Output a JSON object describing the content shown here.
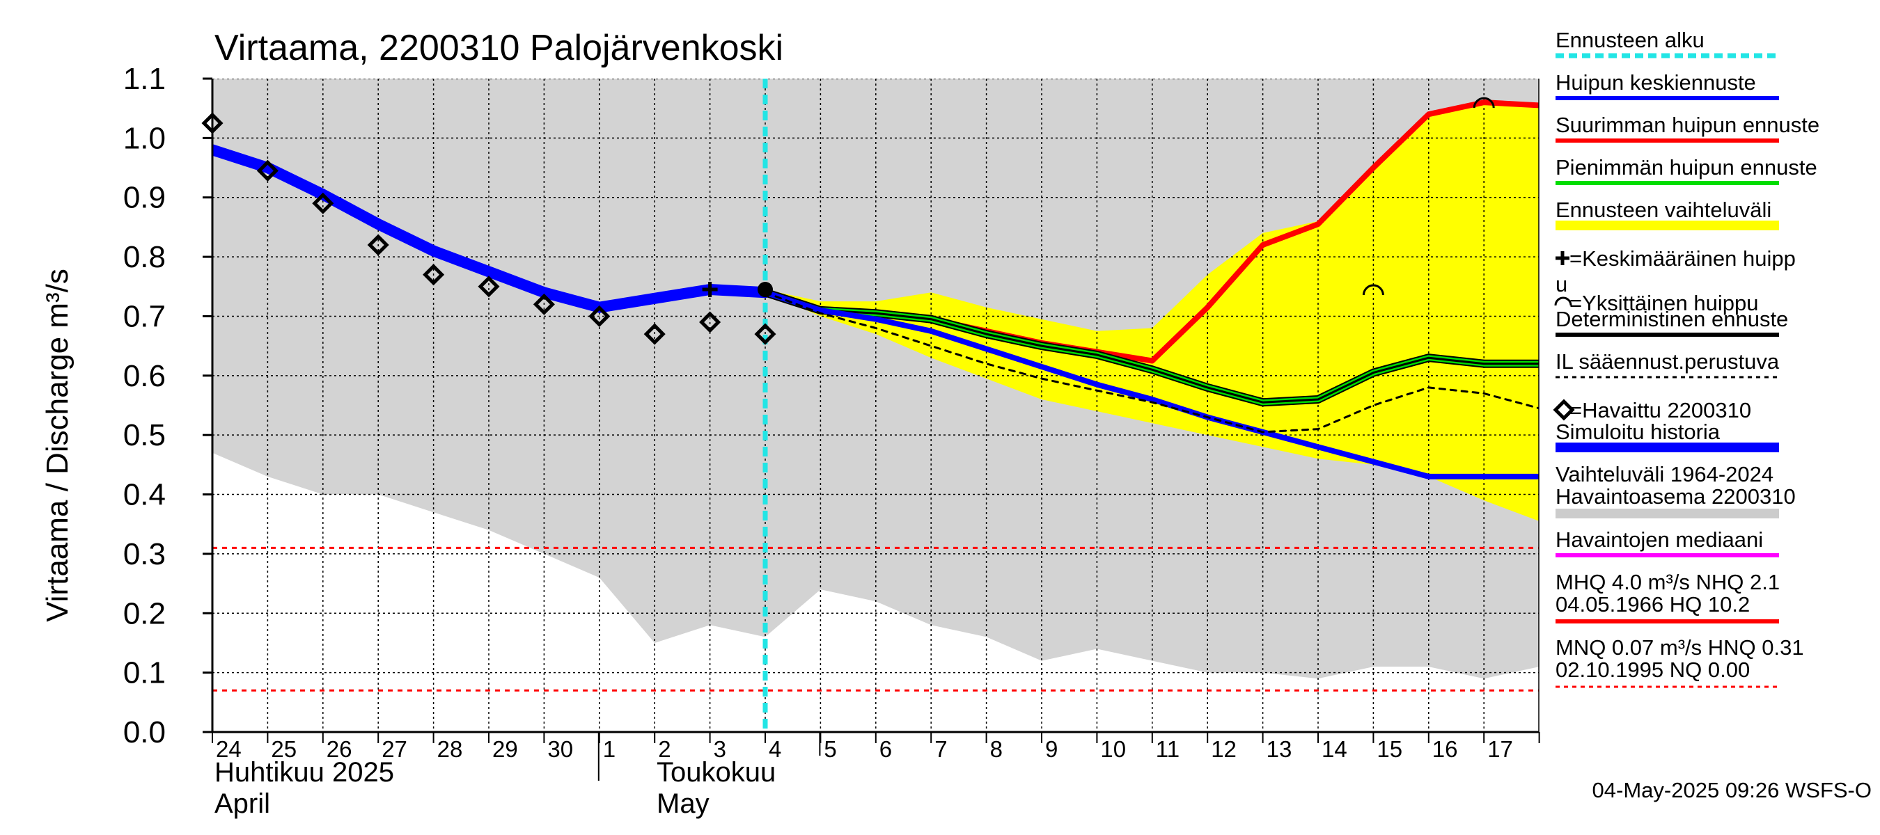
{
  "chart_data": {
    "type": "line",
    "title": "Virtaama, 2200310 Palojärvenkoski",
    "ylabel": "Virtaama / Discharge    m³/s",
    "ylim": [
      0.0,
      1.1
    ],
    "yticks": [
      "0.0",
      "0.1",
      "0.2",
      "0.3",
      "0.4",
      "0.5",
      "0.6",
      "0.7",
      "0.8",
      "0.9",
      "1.0",
      "1.1"
    ],
    "x_days": [
      "24",
      "25",
      "26",
      "27",
      "28",
      "29",
      "30",
      "1",
      "2",
      "3",
      "4",
      "5",
      "6",
      "7",
      "8",
      "9",
      "10",
      "11",
      "12",
      "13",
      "14",
      "15",
      "16",
      "17"
    ],
    "month_labels": {
      "april_fi": "Huhtikuu  2025",
      "april_en": "April",
      "may_fi": "Toukokuu",
      "may_en": "May"
    },
    "forecast_start": 10.0,
    "reference_lines": [
      {
        "name": "HNQ",
        "value": 0.31,
        "color": "#ff0000"
      },
      {
        "name": "MNQ",
        "value": 0.07,
        "color": "#ff0000"
      }
    ],
    "range_band": {
      "x": [
        0,
        1,
        2,
        3,
        4,
        5,
        6,
        7,
        8,
        9,
        10,
        11,
        12,
        13,
        14,
        15,
        16,
        17,
        18,
        19,
        20,
        21,
        22,
        23,
        24
      ],
      "upper": [
        1.1,
        1.1,
        1.1,
        1.1,
        1.1,
        1.1,
        1.1,
        1.1,
        1.1,
        1.1,
        1.1,
        1.1,
        1.1,
        1.1,
        1.1,
        1.1,
        1.1,
        1.1,
        1.1,
        1.1,
        1.1,
        1.1,
        1.1,
        1.1,
        1.1
      ],
      "lower": [
        0.47,
        0.43,
        0.4,
        0.4,
        0.37,
        0.34,
        0.3,
        0.26,
        0.15,
        0.18,
        0.16,
        0.24,
        0.22,
        0.18,
        0.16,
        0.12,
        0.14,
        0.12,
        0.1,
        0.1,
        0.09,
        0.11,
        0.11,
        0.09,
        0.11
      ]
    },
    "forecast_band": {
      "x": [
        10,
        11,
        12,
        13,
        14,
        15,
        16,
        17,
        18,
        19,
        20,
        21,
        22,
        23,
        24
      ],
      "upper": [
        0.745,
        0.725,
        0.725,
        0.74,
        0.715,
        0.695,
        0.675,
        0.68,
        0.77,
        0.84,
        0.86,
        0.95,
        1.04,
        1.06,
        1.055
      ],
      "lower": [
        0.74,
        0.7,
        0.67,
        0.63,
        0.595,
        0.56,
        0.54,
        0.52,
        0.5,
        0.48,
        0.46,
        0.45,
        0.43,
        0.39,
        0.355
      ]
    },
    "series": [
      {
        "name": "Simuloitu historia",
        "color": "#0000ff",
        "width": 16,
        "x": [
          0,
          1,
          2,
          3,
          4,
          5,
          6,
          7,
          8,
          9,
          10
        ],
        "y": [
          0.98,
          0.95,
          0.905,
          0.855,
          0.81,
          0.775,
          0.74,
          0.715,
          0.73,
          0.745,
          0.74
        ]
      },
      {
        "name": "Suurimman huipun ennuste",
        "color": "#ff0000",
        "width": 8,
        "x": [
          10,
          11,
          12,
          13,
          14,
          15,
          16,
          17,
          18,
          19,
          20,
          21,
          22,
          23,
          24
        ],
        "y": [
          0.74,
          0.71,
          0.705,
          0.695,
          0.675,
          0.655,
          0.64,
          0.625,
          0.715,
          0.82,
          0.855,
          0.95,
          1.04,
          1.06,
          1.055
        ]
      },
      {
        "name": "Pienimmän huipun ennuste",
        "color": "#00dd00",
        "width": 8,
        "x": [
          10,
          11,
          12,
          13,
          14,
          15,
          16,
          17,
          18,
          19,
          20,
          21,
          22,
          23,
          24
        ],
        "y": [
          0.74,
          0.71,
          0.705,
          0.695,
          0.67,
          0.65,
          0.635,
          0.61,
          0.58,
          0.555,
          0.56,
          0.605,
          0.63,
          0.62,
          0.62
        ]
      },
      {
        "name": "Deterministinen ennuste",
        "color": "#000000",
        "width": 3,
        "x": [
          10,
          11,
          12,
          13,
          14,
          15,
          16,
          17,
          18,
          19,
          20,
          21,
          22,
          23,
          24
        ],
        "y": [
          0.74,
          0.71,
          0.705,
          0.695,
          0.67,
          0.65,
          0.635,
          0.61,
          0.58,
          0.555,
          0.56,
          0.605,
          0.63,
          0.62,
          0.62
        ]
      },
      {
        "name": "Huipun keskiennuste",
        "color": "#0000ff",
        "width": 8,
        "x": [
          10,
          11,
          12,
          13,
          14,
          15,
          16,
          17,
          18,
          19,
          20,
          21,
          22,
          23,
          24
        ],
        "y": [
          0.74,
          0.71,
          0.695,
          0.675,
          0.645,
          0.615,
          0.585,
          0.56,
          0.53,
          0.505,
          0.48,
          0.455,
          0.43,
          0.43,
          0.43
        ]
      },
      {
        "name": "IL sääennust.perustuva",
        "color": "#000000",
        "width": 3,
        "dash": true,
        "x": [
          10,
          11,
          12,
          13,
          14,
          15,
          16,
          17,
          18,
          19,
          20,
          21,
          22,
          23,
          24
        ],
        "y": [
          0.74,
          0.705,
          0.68,
          0.65,
          0.62,
          0.595,
          0.575,
          0.555,
          0.53,
          0.505,
          0.51,
          0.55,
          0.58,
          0.57,
          0.545
        ]
      }
    ],
    "observed": {
      "name": "Havaittu 2200310",
      "x": [
        0,
        1,
        2,
        3,
        4,
        5,
        6,
        7,
        8,
        9,
        10
      ],
      "y": [
        1.025,
        0.945,
        0.89,
        0.82,
        0.77,
        0.75,
        0.72,
        0.7,
        0.67,
        0.69,
        0.67
      ]
    },
    "mean_peak_marker": {
      "x": 9,
      "y": 0.745
    },
    "single_peaks": [
      {
        "x": 10,
        "y": 0.745
      },
      {
        "x": 21,
        "y": 0.745
      },
      {
        "x": 23,
        "y": 1.06
      }
    ],
    "legend": [
      {
        "label": "Ennusteen alku",
        "color": "#22e5e5",
        "style": "dashed"
      },
      {
        "label": "Huipun keskiennuste",
        "color": "#0000ff",
        "style": "line"
      },
      {
        "label": "Suurimman huipun ennuste",
        "color": "#ff0000",
        "style": "line"
      },
      {
        "label": "Pienimmän huipun ennuste",
        "color": "#00dd00",
        "style": "line"
      },
      {
        "label": "Ennusteen vaihteluväli",
        "color": "#ffff00",
        "style": "thick"
      },
      {
        "label": "=Keskimääräinen huipp",
        "label2": "u",
        "color": "#000000",
        "style": "plus"
      },
      {
        "label": "=Yksittäinen huippu",
        "color": "#000000",
        "style": "arc"
      },
      {
        "label": "Deterministinen ennuste",
        "color": "#000000",
        "style": "line"
      },
      {
        "label": "IL sääennust.perustuva",
        "color": "#000000",
        "style": "dotted"
      },
      {
        "label": "=Havaittu 2200310",
        "color": "#000000",
        "style": "diamond"
      },
      {
        "label": "Simuloitu historia",
        "color": "#0000ff",
        "style": "thick"
      },
      {
        "label": "Vaihteluväli 1964-2024",
        "label2": " Havaintoasema 2200310",
        "color": "#cccccc",
        "style": "thick"
      },
      {
        "label": "Havaintojen mediaani",
        "color": "#ff00ff",
        "style": "line"
      },
      {
        "label": "MHQ  4.0 m³/s NHQ  2.1",
        "label2": "04.05.1966 HQ 10.2",
        "color": "#ff0000",
        "style": "line"
      },
      {
        "label": "MNQ 0.07 m³/s HNQ 0.31",
        "label2": "02.10.1995 NQ 0.00",
        "color": "#ff0000",
        "style": "dotted"
      }
    ],
    "footer": "04-May-2025 09:26 WSFS-O",
    "colors": {
      "range": "#d3d3d3",
      "forecast": "#ffff00",
      "grid": "#000000",
      "forecast_start": "#22e5e5"
    }
  }
}
